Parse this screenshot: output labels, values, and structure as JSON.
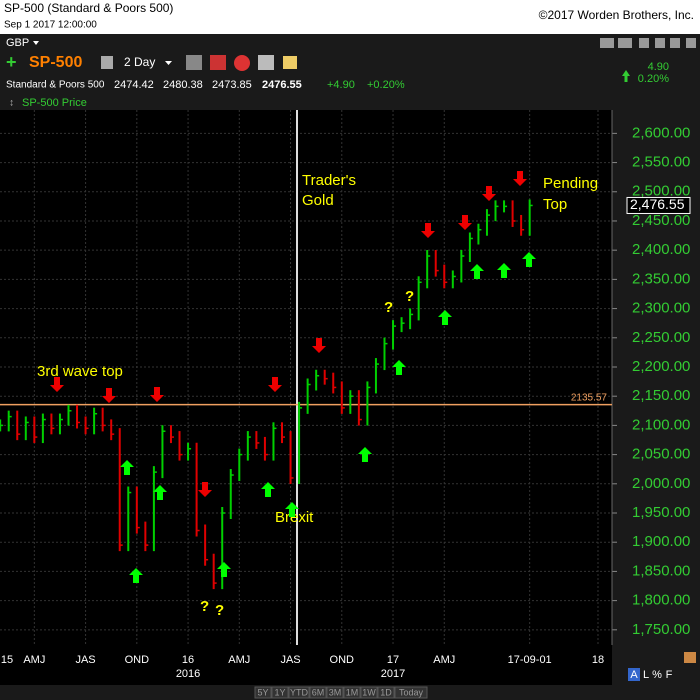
{
  "header": {
    "title": "SP-500 (Standard & Poors 500)",
    "datetime": "Sep 1 2017 12:00:00",
    "copyright": "©2017 Worden Brothers, Inc."
  },
  "toolbar": {
    "currency": "GBP",
    "symbol": "SP-500",
    "period": "2 Day",
    "name": "Standard & Poors 500",
    "open": 2474.42,
    "high": 2480.38,
    "low": 2473.85,
    "last": 2476.55,
    "change": "+4.90",
    "change_pct": "+0.20%",
    "side_change": "4.90",
    "side_change_pct": "0.20%"
  },
  "chart_data": {
    "type": "price-bars",
    "x": [
      1,
      1.5,
      2,
      2.5,
      3,
      3.5,
      4,
      4.5,
      5,
      5.5,
      6,
      6.5,
      7,
      7.5,
      8,
      8.5,
      9,
      9.5,
      10,
      10.5,
      11,
      11.5,
      12,
      12.5,
      13,
      13.5,
      14,
      14.5,
      15,
      15.5,
      16,
      16.5,
      17,
      17.5,
      18,
      18.5,
      19,
      19.5,
      20,
      20.5,
      21,
      21.5,
      22,
      22.5,
      23,
      23.5,
      24,
      24.5,
      25,
      25.5,
      26,
      26.5,
      27,
      27.5,
      28,
      28.5,
      29,
      29.5,
      30,
      30.5,
      31,
      31.5,
      32
    ],
    "series": [
      {
        "name": "SP-500 Price",
        "up_color": "#00d000",
        "down_color": "#e00000",
        "values": [
          2100,
          2115,
          2085,
          2105,
          2080,
          2110,
          2095,
          2110,
          2125,
          2105,
          2095,
          2120,
          2100,
          2085,
          1895,
          1985,
          1925,
          1895,
          2020,
          2090,
          2080,
          2050,
          2060,
          1920,
          1870,
          1830,
          1950,
          2015,
          2050,
          2080,
          2070,
          2050,
          2095,
          2080,
          2010,
          2130,
          2170,
          2185,
          2180,
          2165,
          2130,
          2150,
          2110,
          2165,
          2205,
          2240,
          2270,
          2275,
          2290,
          2345,
          2390,
          2365,
          2345,
          2355,
          2390,
          2420,
          2435,
          2460,
          2475,
          2475,
          2450,
          2435,
          2476.55
        ]
      }
    ],
    "last_price": {
      "value": 2476.55,
      "label": "2,476.55"
    },
    "hline": {
      "value": 2135.57,
      "color": "#f0a060"
    },
    "xlim": [
      0.99,
      36.82
    ],
    "ylim": [
      1724,
      2640
    ],
    "grid": true,
    "xticks": [
      {
        "value": 0,
        "label": "15"
      },
      {
        "value": 3,
        "label": "AMJ"
      },
      {
        "value": 6,
        "label": "JAS"
      },
      {
        "value": 9,
        "label": "OND"
      },
      {
        "value": 12,
        "label": "16"
      },
      {
        "value": 15,
        "label": "AMJ"
      },
      {
        "value": 18,
        "label": "JAS"
      },
      {
        "value": 21,
        "label": "OND"
      },
      {
        "value": 24,
        "label": "17"
      },
      {
        "value": 27,
        "label": "AMJ"
      },
      {
        "value": 32,
        "label": "17-09-01"
      },
      {
        "value": 36,
        "label": "18"
      }
    ],
    "xyearticks": [
      {
        "value": 12,
        "label": "2016"
      },
      {
        "value": 24,
        "label": "2017"
      }
    ],
    "yticks": [
      {
        "value": 1750,
        "label": "1,750.00"
      },
      {
        "value": 1800,
        "label": "1,800.00"
      },
      {
        "value": 1850,
        "label": "1,850.00"
      },
      {
        "value": 1900,
        "label": "1,900.00"
      },
      {
        "value": 1950,
        "label": "1,950.00"
      },
      {
        "value": 2000,
        "label": "2,000.00"
      },
      {
        "value": 2050,
        "label": "2,050.00"
      },
      {
        "value": 2100,
        "label": "2,100.00"
      },
      {
        "value": 2150,
        "label": "2,150.00"
      },
      {
        "value": 2200,
        "label": "2,200.00"
      },
      {
        "value": 2250,
        "label": "2,250.00"
      },
      {
        "value": 2300,
        "label": "2,300.00"
      },
      {
        "value": 2350,
        "label": "2,350.00"
      },
      {
        "value": 2400,
        "label": "2,400.00"
      },
      {
        "value": 2450,
        "label": "2,450.00"
      },
      {
        "value": 2500,
        "label": "2,500.00"
      },
      {
        "value": 2550,
        "label": "2,550.00"
      },
      {
        "value": 2600,
        "label": "2,600.00"
      }
    ],
    "annotations": [
      "3rd wave top",
      "Trader's",
      "Gold",
      "Pending",
      "Top",
      "Brexit",
      "?",
      "?",
      "?",
      "?"
    ]
  },
  "range_buttons": [
    "5Y",
    "1Y",
    "YTD",
    "6M",
    "3M",
    "1M",
    "1W",
    "1D",
    "Today"
  ],
  "corner_labels": [
    "A",
    "L",
    "%",
    "F"
  ]
}
